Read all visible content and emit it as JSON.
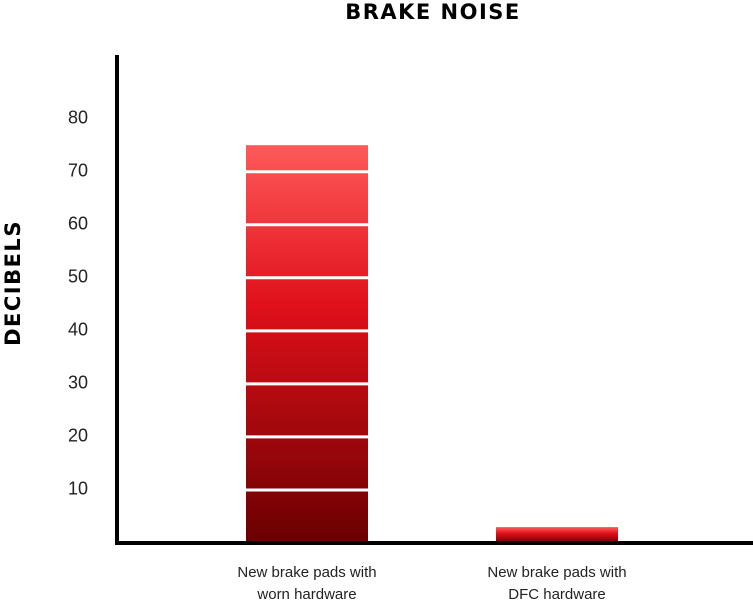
{
  "chart_data": {
    "type": "bar",
    "title": "BRAKE NOISE",
    "y_label": "DECIBELS",
    "categories": [
      "New brake pads with worn hardware",
      "New brake pads with DFC hardware"
    ],
    "values": [
      75,
      3
    ],
    "color": "#e0101a",
    "ylim": [
      0,
      92
    ],
    "yticks": [
      10,
      20,
      30,
      40,
      50,
      60,
      70,
      80
    ]
  }
}
